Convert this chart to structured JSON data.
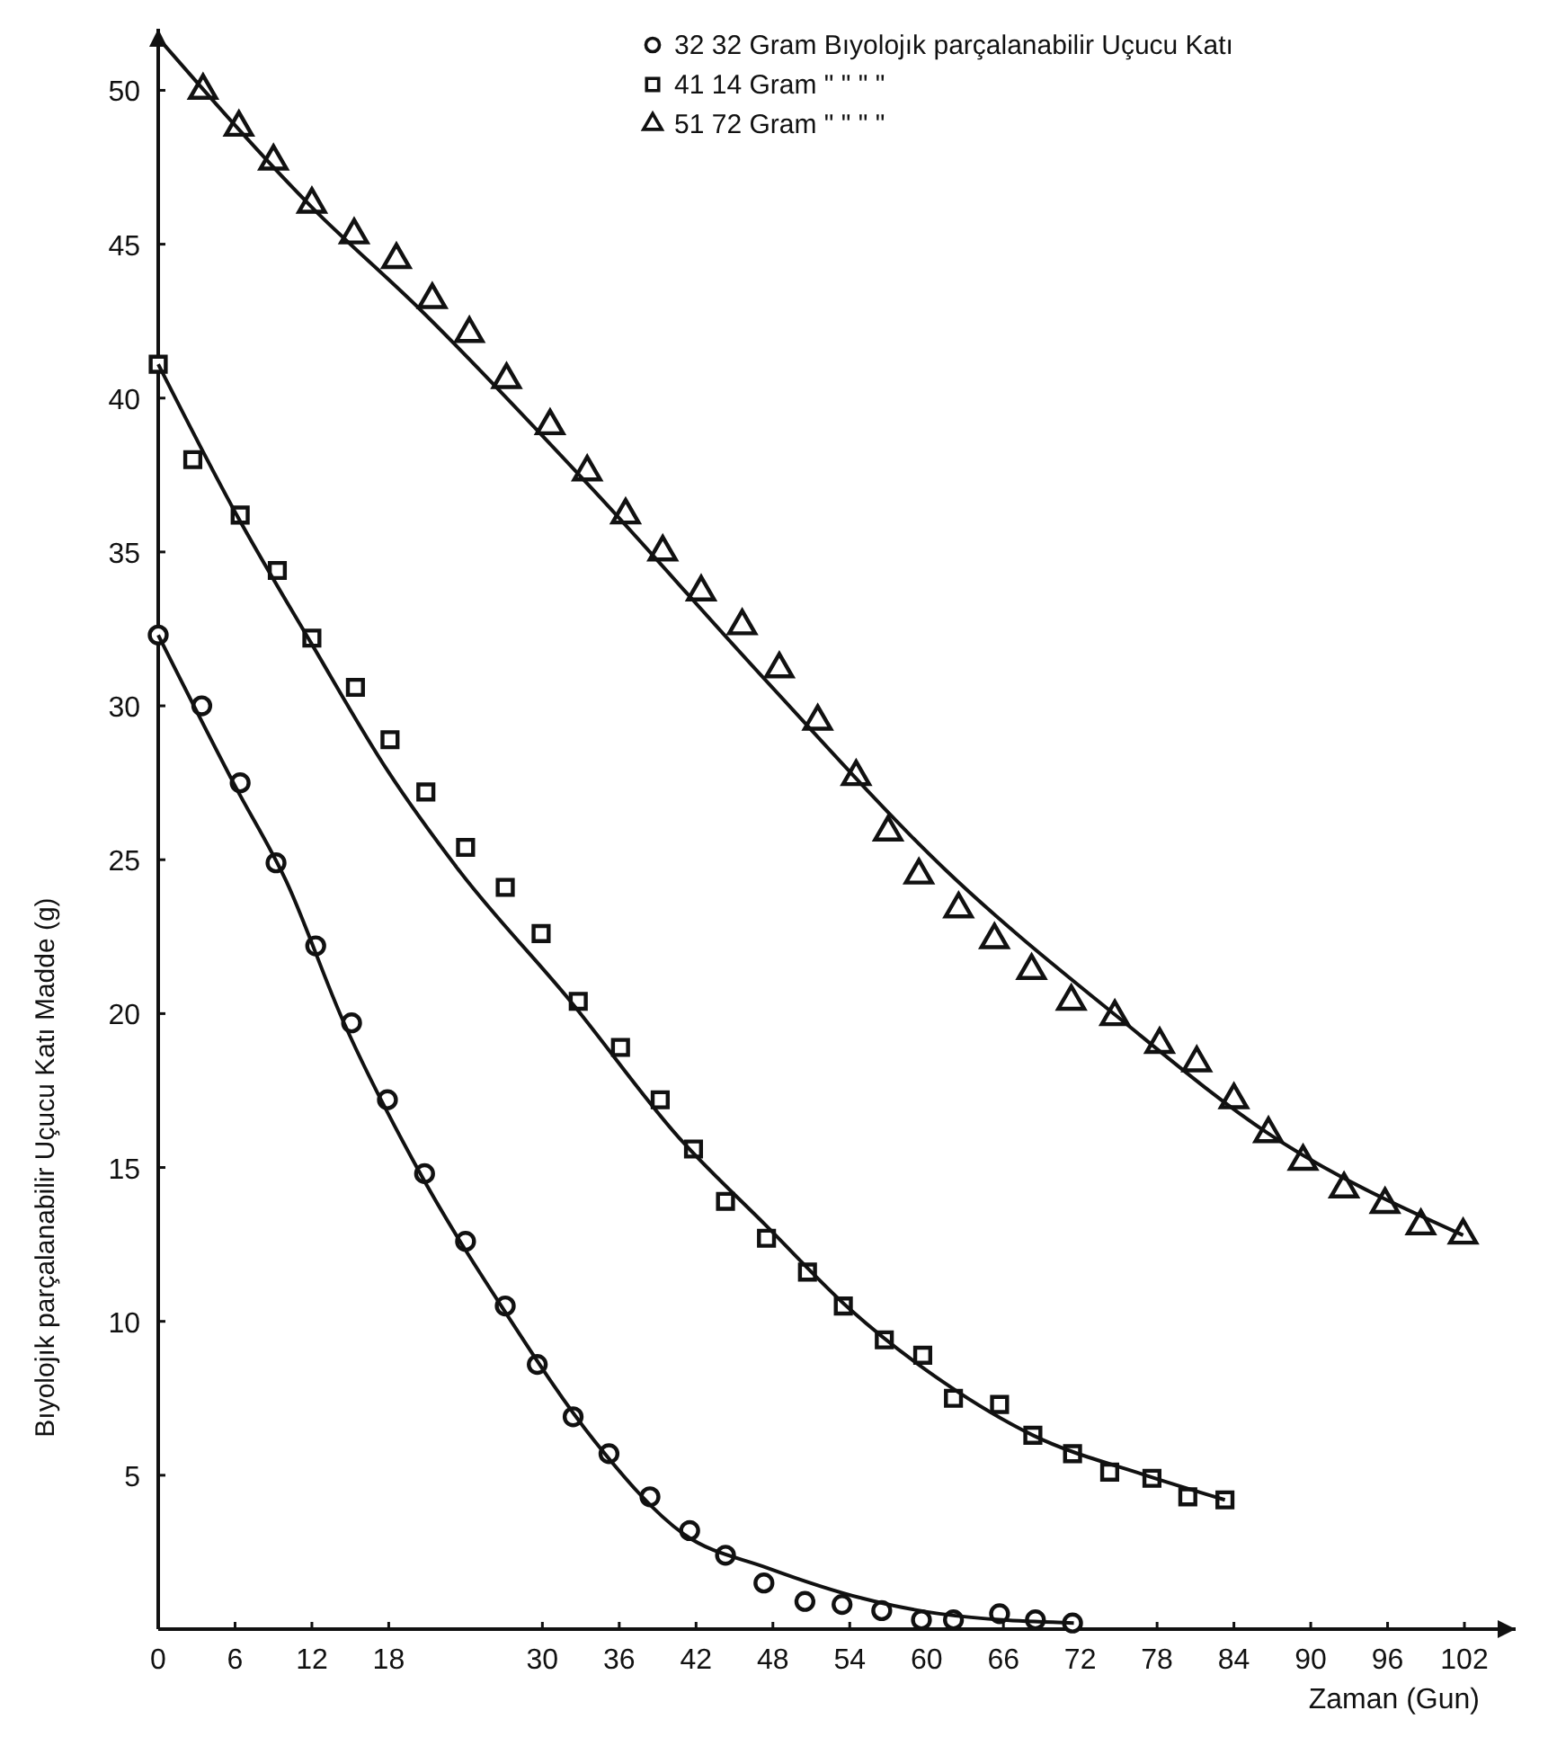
{
  "chart_data": {
    "type": "scatter",
    "xlabel": "Zaman (Gun)",
    "ylabel": "Bıyolojık parçalanabilir Uçucu Katı Madde (g)",
    "xlim": [
      0,
      106
    ],
    "ylim": [
      0,
      52
    ],
    "xticks": [
      0,
      6,
      12,
      18,
      30,
      36,
      42,
      48,
      54,
      60,
      66,
      72,
      78,
      84,
      90,
      96,
      102
    ],
    "yticks": [
      5,
      10,
      15,
      20,
      25,
      30,
      35,
      40,
      45,
      50
    ],
    "legend": "top right",
    "series": [
      {
        "name": "32 32 Gram Bıyolojık parçalanabilir Uçucu Katı",
        "color": "#111111",
        "marker": "circle",
        "x": [
          0,
          3.4,
          6.4,
          9.2,
          12.3,
          15.1,
          17.9,
          20.8,
          24,
          27.1,
          29.6,
          32.4,
          35.2,
          38.4,
          41.5,
          44.3,
          47.3,
          50.5,
          53.4,
          56.5,
          59.6,
          62.1,
          65.7,
          68.5,
          71.4
        ],
        "values": [
          32.3,
          30,
          27.5,
          24.9,
          22.2,
          19.7,
          17.2,
          14.8,
          12.6,
          10.5,
          8.6,
          6.9,
          5.7,
          4.3,
          3.2,
          2.4,
          1.5,
          0.9,
          0.8,
          0.6,
          0.3,
          0.3,
          0.5,
          0.3,
          0.2
        ]
      },
      {
        "name": "41 14 Gram \" \" \" \"",
        "color": "#111111",
        "marker": "square",
        "x": [
          0,
          2.7,
          6.4,
          9.3,
          12,
          15.4,
          18.1,
          20.9,
          24,
          27.1,
          29.9,
          32.8,
          36.1,
          39.2,
          41.8,
          44.3,
          47.5,
          50.7,
          53.5,
          56.7,
          59.7,
          62.1,
          65.7,
          68.3,
          71.4,
          74.3,
          77.6,
          80.4,
          83.3
        ],
        "values": [
          41.1,
          38,
          36.2,
          34.4,
          32.2,
          30.6,
          28.9,
          27.2,
          25.4,
          24.1,
          22.6,
          20.4,
          18.9,
          17.2,
          15.6,
          13.9,
          12.7,
          11.6,
          10.5,
          9.4,
          8.9,
          7.5,
          7.3,
          6.3,
          5.7,
          5.1,
          4.9,
          4.3,
          4.2
        ]
      },
      {
        "name": "51 72 Gram \" \" \" \"",
        "color": "#111111",
        "marker": "triangle",
        "x": [
          3.5,
          6.3,
          9,
          12,
          15.3,
          18.6,
          21.4,
          24.3,
          27.2,
          30.6,
          33.5,
          36.5,
          39.4,
          42.4,
          45.6,
          48.5,
          51.5,
          54.5,
          57,
          59.4,
          62.5,
          65.3,
          68.2,
          71.3,
          74.7,
          78.2,
          81.1,
          84,
          86.7,
          89.4,
          92.6,
          95.8,
          98.6,
          101.9
        ],
        "values": [
          50,
          48.8,
          47.7,
          46.3,
          45.3,
          44.5,
          43.2,
          42.1,
          40.6,
          39.1,
          37.6,
          36.2,
          35,
          33.7,
          32.6,
          31.2,
          29.5,
          27.7,
          25.9,
          24.5,
          23.4,
          22.4,
          21.4,
          20.4,
          19.9,
          19,
          18.4,
          17.2,
          16.1,
          15.2,
          14.3,
          13.8,
          13.1,
          12.8
        ]
      },
      {
        "type": "line",
        "color": "#111111",
        "line_style": "solid",
        "x": [
          0,
          6,
          10,
          14.4,
          20.2,
          27.1,
          34.1,
          41,
          47.5,
          55,
          61,
          71.5
        ],
        "values": [
          32.3,
          27.4,
          24.3,
          19.8,
          15,
          10.3,
          6.1,
          3.1,
          2,
          1,
          0.5,
          0.2
        ]
      },
      {
        "type": "line",
        "color": "#111111",
        "line_style": "solid",
        "x": [
          0,
          6,
          12,
          17.9,
          23.4,
          32.2,
          40.6,
          47.5,
          54,
          61.4,
          68.3,
          77.1,
          83.3
        ],
        "values": [
          41.1,
          36.3,
          32,
          27.9,
          24.7,
          20.4,
          16,
          13.1,
          10.4,
          8,
          6.3,
          5,
          4.2
        ]
      },
      {
        "type": "line",
        "color": "#111111",
        "line_style": "solid",
        "x": [
          0,
          12,
          20.4,
          34,
          47.5,
          61.4,
          74.9,
          86.7,
          101.9
        ],
        "values": [
          51.7,
          46.2,
          42.9,
          37,
          30.8,
          24.7,
          19.9,
          16.1,
          12.8
        ]
      }
    ]
  }
}
